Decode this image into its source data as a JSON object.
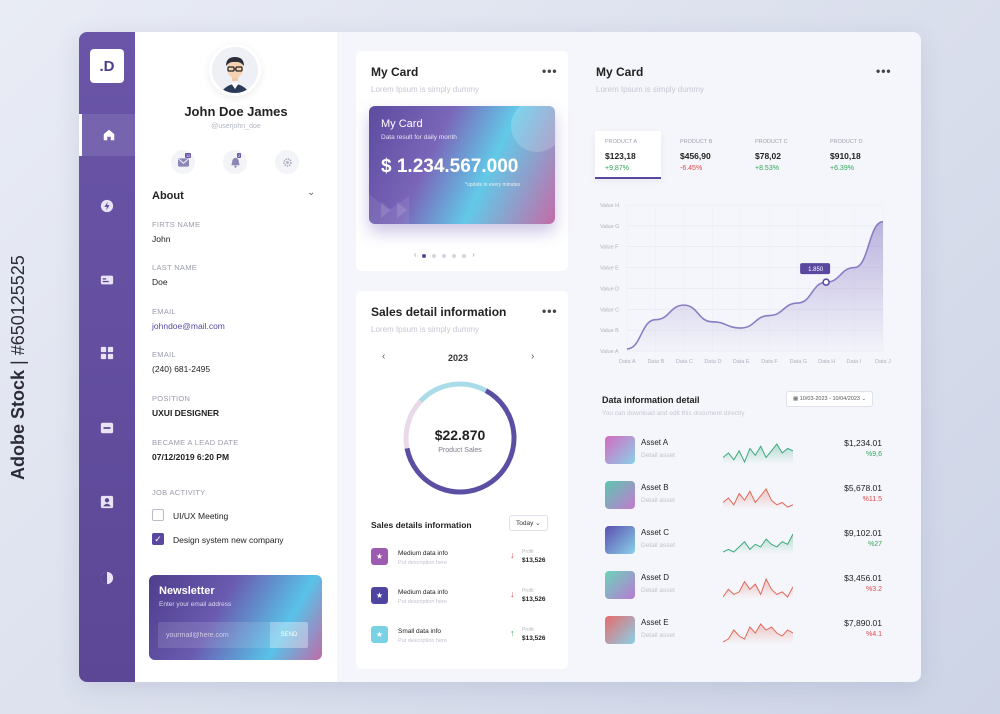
{
  "app": {
    "logo": ".D"
  },
  "watermark": {
    "brand": "Adobe Stock",
    "separator": " | ",
    "id": "#650125525"
  },
  "profile": {
    "name": "John Doe James",
    "handle": "@userjohn_doe",
    "badges": {
      "mail": "12",
      "bell": "2"
    },
    "about_title": "About",
    "fields": [
      {
        "label": "FIRTS NAME",
        "value": "John"
      },
      {
        "label": "LAST NAME",
        "value": "Doe"
      },
      {
        "label": "EMAIL",
        "value": "johndoe@mail.com"
      },
      {
        "label": "EMAIL",
        "value": "(240) 681-2495"
      },
      {
        "label": "POSITION",
        "value": "UXUI DESIGNER"
      },
      {
        "label": "BECAME A LEAD DATE",
        "value": "07/12/2019 6:20 PM"
      }
    ],
    "job_activity": {
      "label": "JOB ACTIVITY",
      "items": [
        {
          "label": "UI/UX Meeting",
          "checked": false
        },
        {
          "label": "Design system new company",
          "checked": true
        }
      ]
    },
    "newsletter": {
      "title": "Newsletter",
      "subtitle": "Enter your email address",
      "placeholder": "yourmail@here.com",
      "button": "SEND"
    }
  },
  "my_card_left": {
    "title": "My Card",
    "subtitle": "Lorem Ipsum is simply dummy",
    "menu": "•••",
    "card": {
      "title": "My Card",
      "subtitle": "Data result for daily month",
      "amount": "$ 1.234.567.000",
      "note": "*update in every minutes"
    },
    "pager": {
      "total": 5,
      "active": 0,
      "prev": "‹",
      "next": "›"
    }
  },
  "sales": {
    "title": "Sales detail information",
    "subtitle": "Lorem Ipsum is simply dummy",
    "menu": "•••",
    "year": "2023",
    "prev": "‹",
    "next": "›",
    "donut": {
      "value": "$22.870",
      "label": "Product Sales",
      "segments": [
        0.64,
        0.15,
        0.21
      ],
      "colors": [
        "#5a4fa3",
        "#ead9e8",
        "#a9dce8"
      ]
    },
    "list_title": "Sales details information",
    "filter": "Today",
    "items": [
      {
        "name": "Medium data info",
        "desc": "Put description here",
        "profit_label": "Profit",
        "value": "$13,526",
        "trend": "down",
        "color": "#9c5ab0"
      },
      {
        "name": "Medium data info",
        "desc": "Put description here",
        "profit_label": "Profit",
        "value": "$13,526",
        "trend": "down",
        "color": "#4e45a0"
      },
      {
        "name": "Small data info",
        "desc": "Put description here",
        "profit_label": "Profit",
        "value": "$13,526",
        "trend": "up",
        "color": "#79d1e3"
      }
    ]
  },
  "my_card_right": {
    "title": "My Card",
    "subtitle": "Lorem Ipsum is simply dummy",
    "menu": "•••",
    "products": [
      {
        "name": "PRODUCT A",
        "price": "$123,18",
        "change": "+9,87%",
        "dir": "pos"
      },
      {
        "name": "PRODUCT B",
        "price": "$456,90",
        "change": "-6.45%",
        "dir": "neg"
      },
      {
        "name": "PRODUCT C",
        "price": "$78,02",
        "change": "+8.53%",
        "dir": "pos"
      },
      {
        "name": "PRODUCT D",
        "price": "$910,18",
        "change": "+6.39%",
        "dir": "pos"
      }
    ],
    "tooltip": "1.850"
  },
  "chart_data": {
    "type": "area",
    "title": "",
    "xlabel": "",
    "ylabel": "",
    "categories": [
      "Data A",
      "Data B",
      "Data C",
      "Data D",
      "Data E",
      "Data F",
      "Data G",
      "Data H",
      "Data I",
      "Data J"
    ],
    "y_ticks": [
      "Value A",
      "Value B",
      "Value C",
      "Value D",
      "Value E",
      "Value F",
      "Value G",
      "Value H"
    ],
    "series": [
      {
        "values": [
          0.1,
          1.5,
          2.2,
          1.4,
          1.1,
          1.7,
          2.3,
          3.3,
          4.0,
          6.2
        ]
      }
    ],
    "grid": true,
    "color": "#8a7dc4"
  },
  "data_info": {
    "title": "Data information detail",
    "subtitle": "You can download and edit this document directly",
    "date_range": "10/03-2023 - 10/04/2023",
    "assets": [
      {
        "name": "Asset A",
        "sub": "Detail asset",
        "value": "$1,234.01",
        "pct": "%9,6",
        "dir": "pos",
        "thumb": [
          "#d46ac2",
          "#8ad1e8"
        ],
        "spark": [
          6,
          8,
          5,
          9,
          4,
          10,
          7,
          11,
          6,
          9,
          12,
          8,
          10,
          9
        ]
      },
      {
        "name": "Asset B",
        "sub": "Detail asset",
        "value": "$5,678.01",
        "pct": "%11.5",
        "dir": "neg",
        "thumb": [
          "#5cc6b0",
          "#c37ad0"
        ],
        "spark": [
          8,
          10,
          7,
          12,
          9,
          13,
          8,
          11,
          14,
          9,
          7,
          8,
          6,
          7
        ]
      },
      {
        "name": "Asset C",
        "sub": "Detail asset",
        "value": "$9,102.01",
        "pct": "%27",
        "dir": "pos",
        "thumb": [
          "#5a4fb0",
          "#8ad1e8"
        ],
        "spark": [
          5,
          6,
          5,
          7,
          9,
          6,
          8,
          7,
          10,
          8,
          7,
          9,
          8,
          12
        ]
      },
      {
        "name": "Asset D",
        "sub": "Detail asset",
        "value": "$3,456.01",
        "pct": "%3.2",
        "dir": "neg",
        "thumb": [
          "#6bd3b8",
          "#b87ad4"
        ],
        "spark": [
          6,
          9,
          7,
          8,
          12,
          9,
          11,
          7,
          13,
          9,
          7,
          8,
          6,
          10
        ]
      },
      {
        "name": "Asset E",
        "sub": "Detail asset",
        "value": "$7,890.01",
        "pct": "%4.1",
        "dir": "neg",
        "thumb": [
          "#e66b6b",
          "#8ad1e8"
        ],
        "spark": [
          5,
          6,
          9,
          7,
          6,
          10,
          8,
          11,
          9,
          10,
          8,
          7,
          9,
          8
        ]
      }
    ]
  },
  "colors": {
    "accent": "#5a48a0",
    "pos": "#2fa65a",
    "neg": "#e0474c",
    "spark_pos": "#3aa87a",
    "spark_neg": "#e06a5a"
  }
}
